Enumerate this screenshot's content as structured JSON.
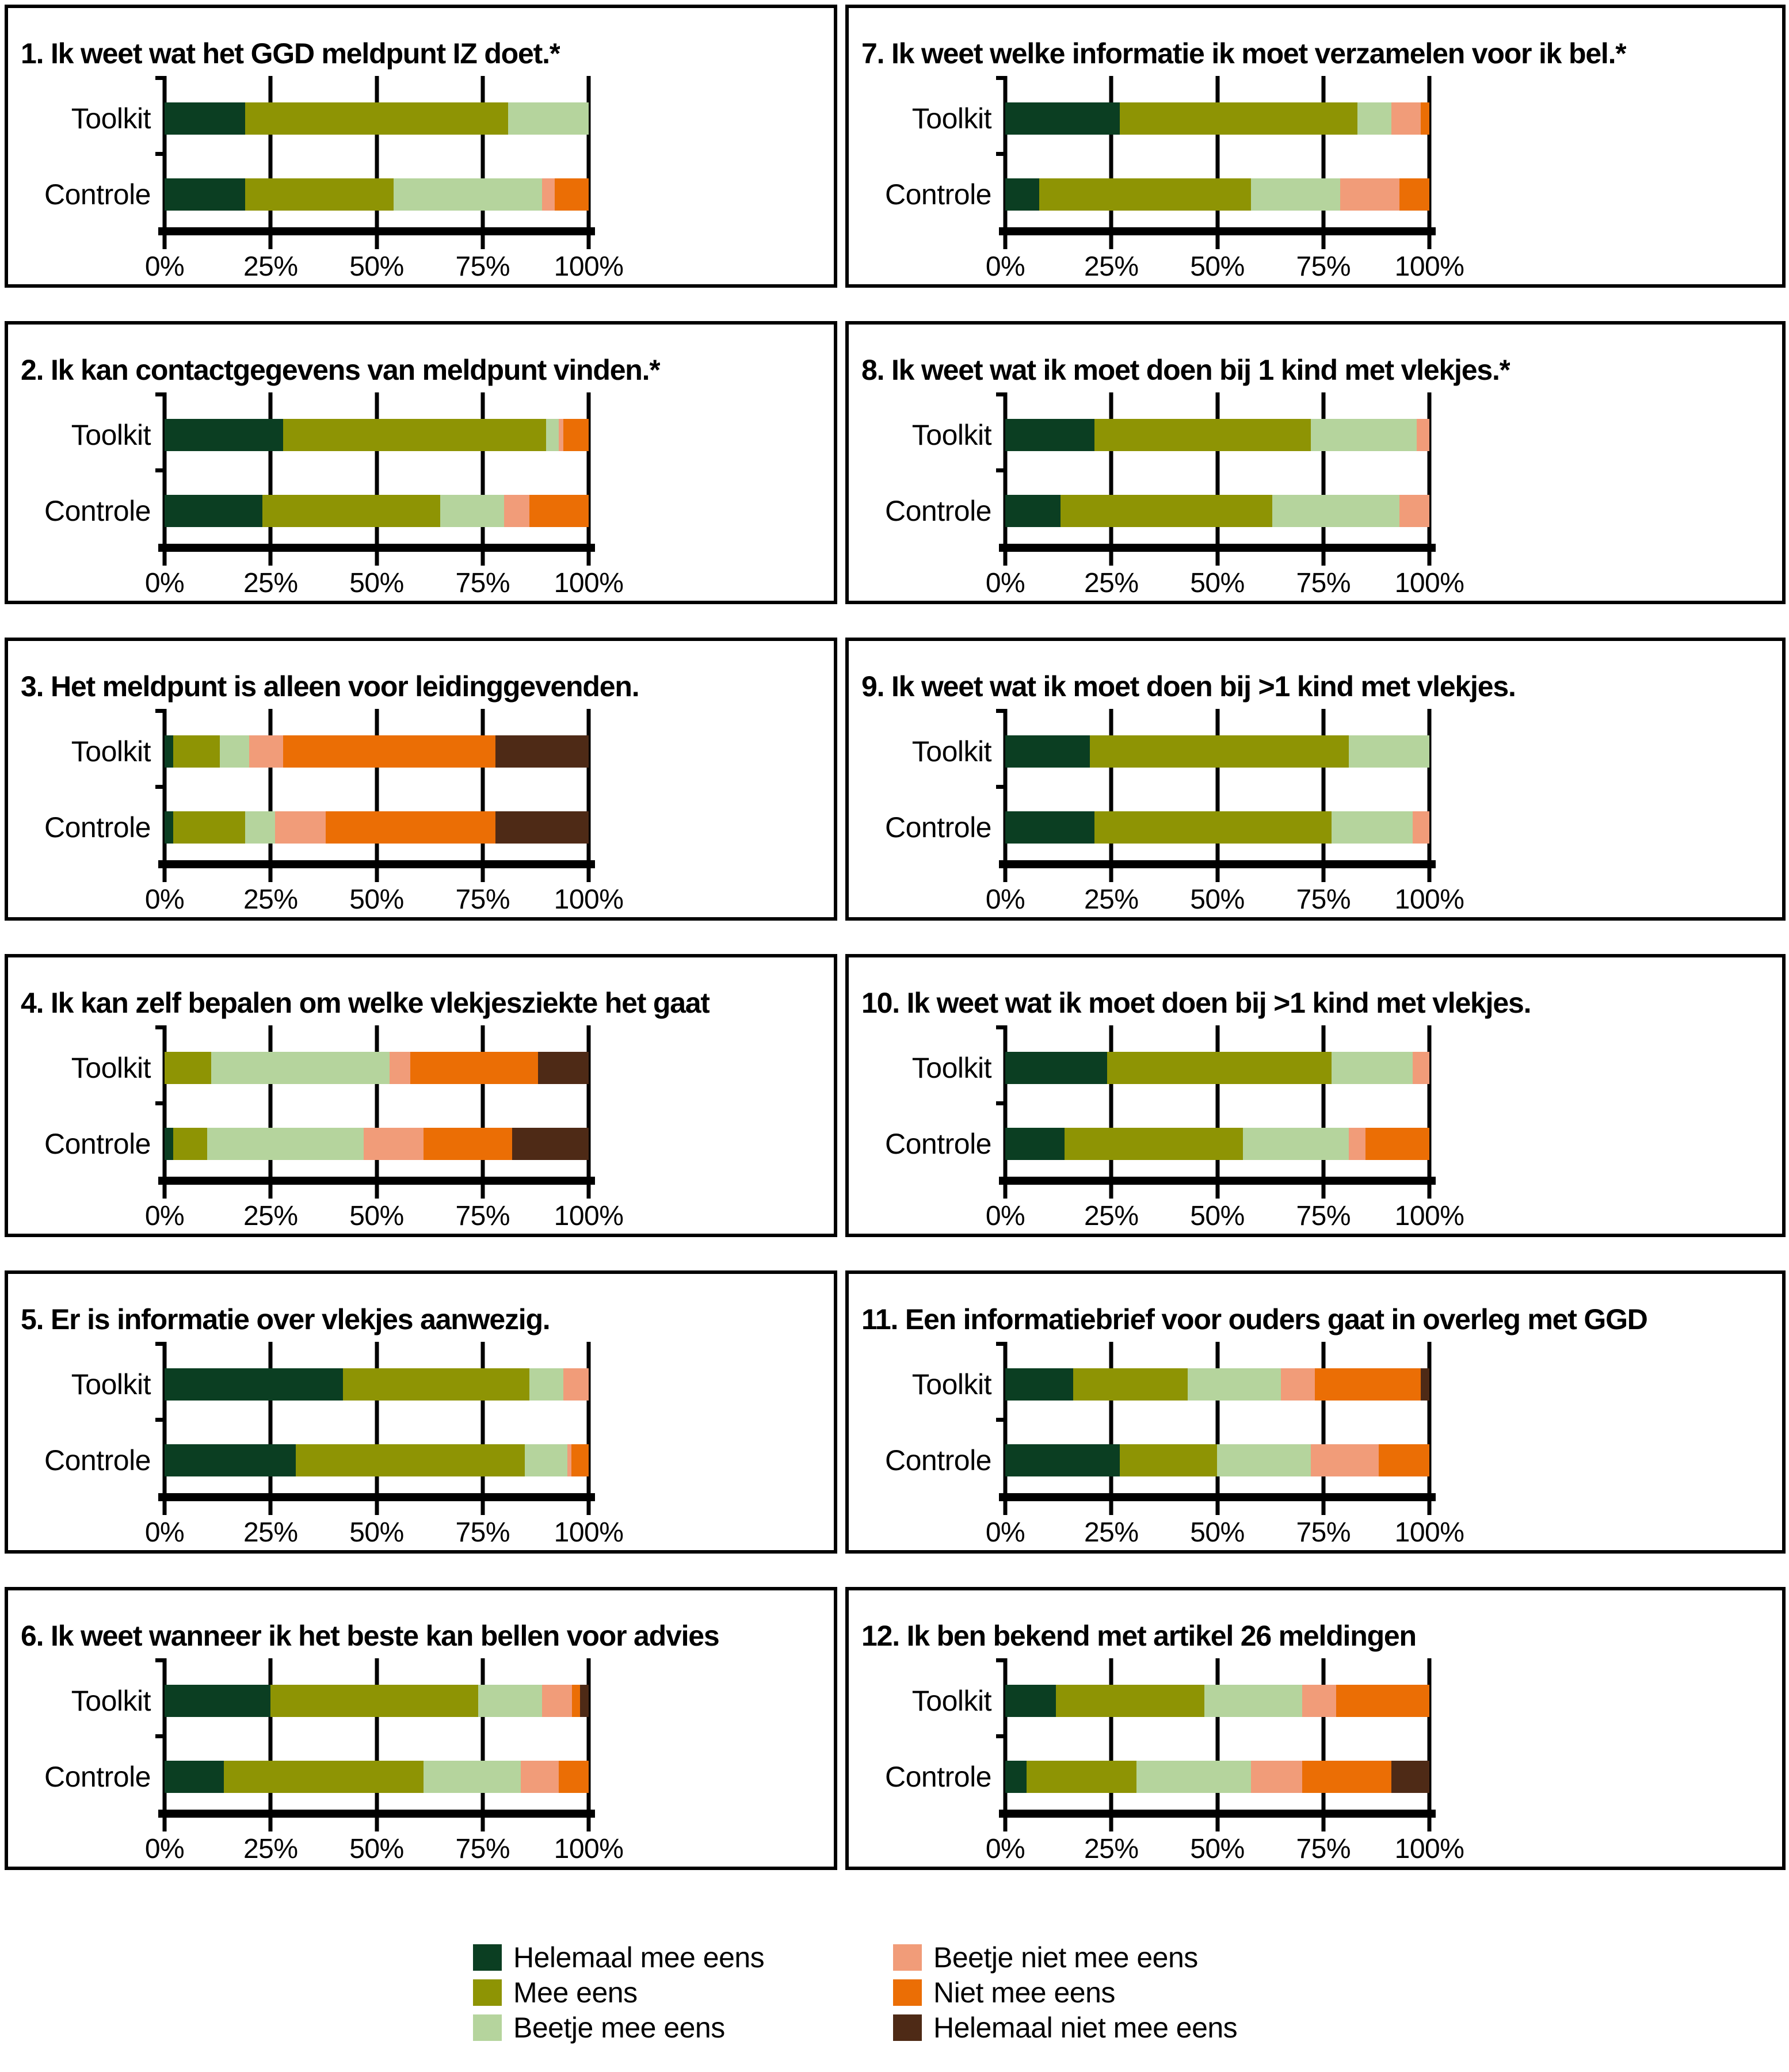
{
  "legend": {
    "items": [
      {
        "label": "Helemaal mee eens",
        "color": "#0b3e22"
      },
      {
        "label": "Mee eens",
        "color": "#8e9404"
      },
      {
        "label": "Beetje mee eens",
        "color": "#b5d49d"
      },
      {
        "label": "Beetje niet mee eens",
        "color": "#f19c79"
      },
      {
        "label": "Niet mee eens",
        "color": "#eb6e05"
      },
      {
        "label": "Helemaal niet mee eens",
        "color": "#4e2a16"
      }
    ]
  },
  "axis": {
    "ticks": [
      "0%",
      "25%",
      "50%",
      "75%",
      "100%"
    ]
  },
  "chart_data": [
    {
      "type": "bar",
      "stacked": true,
      "orientation": "horizontal",
      "title": "1. Ik weet wat het GGD meldpunt IZ doet.*",
      "categories": [
        "Toolkit",
        "Controle"
      ],
      "xlim": [
        0,
        100
      ],
      "grid": true,
      "series": [
        {
          "name": "Helemaal mee eens",
          "values": [
            19,
            19
          ]
        },
        {
          "name": "Mee eens",
          "values": [
            62,
            35
          ]
        },
        {
          "name": "Beetje mee eens",
          "values": [
            19,
            35
          ]
        },
        {
          "name": "Beetje niet mee eens",
          "values": [
            0,
            3
          ]
        },
        {
          "name": "Niet mee eens",
          "values": [
            0,
            8
          ]
        },
        {
          "name": "Helemaal niet mee eens",
          "values": [
            0,
            0
          ]
        }
      ]
    },
    {
      "type": "bar",
      "stacked": true,
      "orientation": "horizontal",
      "title": "2. Ik kan contactgegevens van meldpunt vinden.*",
      "categories": [
        "Toolkit",
        "Controle"
      ],
      "xlim": [
        0,
        100
      ],
      "grid": true,
      "series": [
        {
          "name": "Helemaal mee eens",
          "values": [
            28,
            23
          ]
        },
        {
          "name": "Mee eens",
          "values": [
            62,
            42
          ]
        },
        {
          "name": "Beetje mee eens",
          "values": [
            3,
            15
          ]
        },
        {
          "name": "Beetje niet mee eens",
          "values": [
            1,
            6
          ]
        },
        {
          "name": "Niet mee eens",
          "values": [
            6,
            14
          ]
        },
        {
          "name": "Helemaal niet mee eens",
          "values": [
            0,
            0
          ]
        }
      ]
    },
    {
      "type": "bar",
      "stacked": true,
      "orientation": "horizontal",
      "title": "3. Het meldpunt is alleen voor leidinggevenden.",
      "categories": [
        "Toolkit",
        "Controle"
      ],
      "xlim": [
        0,
        100
      ],
      "grid": true,
      "series": [
        {
          "name": "Helemaal mee eens",
          "values": [
            2,
            2
          ]
        },
        {
          "name": "Mee eens",
          "values": [
            11,
            17
          ]
        },
        {
          "name": "Beetje mee eens",
          "values": [
            7,
            7
          ]
        },
        {
          "name": "Beetje niet mee eens",
          "values": [
            8,
            12
          ]
        },
        {
          "name": "Niet mee eens",
          "values": [
            50,
            40
          ]
        },
        {
          "name": "Helemaal niet mee eens",
          "values": [
            22,
            22
          ]
        }
      ]
    },
    {
      "type": "bar",
      "stacked": true,
      "orientation": "horizontal",
      "title": "4. Ik kan zelf bepalen om welke vlekjesziekte het gaat",
      "categories": [
        "Toolkit",
        "Controle"
      ],
      "xlim": [
        0,
        100
      ],
      "grid": true,
      "series": [
        {
          "name": "Helemaal mee eens",
          "values": [
            0,
            2
          ]
        },
        {
          "name": "Mee eens",
          "values": [
            11,
            8
          ]
        },
        {
          "name": "Beetje mee eens",
          "values": [
            42,
            37
          ]
        },
        {
          "name": "Beetje niet mee eens",
          "values": [
            5,
            14
          ]
        },
        {
          "name": "Niet mee eens",
          "values": [
            30,
            21
          ]
        },
        {
          "name": "Helemaal niet mee eens",
          "values": [
            12,
            18
          ]
        }
      ]
    },
    {
      "type": "bar",
      "stacked": true,
      "orientation": "horizontal",
      "title": "5. Er is informatie over vlekjes aanwezig.",
      "categories": [
        "Toolkit",
        "Controle"
      ],
      "xlim": [
        0,
        100
      ],
      "grid": true,
      "series": [
        {
          "name": "Helemaal mee eens",
          "values": [
            42,
            31
          ]
        },
        {
          "name": "Mee eens",
          "values": [
            44,
            54
          ]
        },
        {
          "name": "Beetje mee eens",
          "values": [
            8,
            10
          ]
        },
        {
          "name": "Beetje niet mee eens",
          "values": [
            6,
            1
          ]
        },
        {
          "name": "Niet mee eens",
          "values": [
            0,
            4
          ]
        },
        {
          "name": "Helemaal niet mee eens",
          "values": [
            0,
            0
          ]
        }
      ]
    },
    {
      "type": "bar",
      "stacked": true,
      "orientation": "horizontal",
      "title": "6. Ik weet wanneer ik het beste kan bellen voor advies",
      "categories": [
        "Toolkit",
        "Controle"
      ],
      "xlim": [
        0,
        100
      ],
      "grid": true,
      "series": [
        {
          "name": "Helemaal mee eens",
          "values": [
            25,
            14
          ]
        },
        {
          "name": "Mee eens",
          "values": [
            49,
            47
          ]
        },
        {
          "name": "Beetje mee eens",
          "values": [
            15,
            23
          ]
        },
        {
          "name": "Beetje niet mee eens",
          "values": [
            7,
            9
          ]
        },
        {
          "name": "Niet mee eens",
          "values": [
            2,
            7
          ]
        },
        {
          "name": "Helemaal niet mee eens",
          "values": [
            2,
            0
          ]
        }
      ]
    },
    {
      "type": "bar",
      "stacked": true,
      "orientation": "horizontal",
      "title": "7. Ik weet welke informatie ik moet verzamelen voor ik bel.*",
      "categories": [
        "Toolkit",
        "Controle"
      ],
      "xlim": [
        0,
        100
      ],
      "grid": true,
      "series": [
        {
          "name": "Helemaal mee eens",
          "values": [
            27,
            8
          ]
        },
        {
          "name": "Mee eens",
          "values": [
            56,
            50
          ]
        },
        {
          "name": "Beetje mee eens",
          "values": [
            8,
            21
          ]
        },
        {
          "name": "Beetje niet mee eens",
          "values": [
            7,
            14
          ]
        },
        {
          "name": "Niet mee eens",
          "values": [
            2,
            7
          ]
        },
        {
          "name": "Helemaal niet mee eens",
          "values": [
            0,
            0
          ]
        }
      ]
    },
    {
      "type": "bar",
      "stacked": true,
      "orientation": "horizontal",
      "title": "8. Ik weet wat ik moet doen bij 1 kind met vlekjes.*",
      "categories": [
        "Toolkit",
        "Controle"
      ],
      "xlim": [
        0,
        100
      ],
      "grid": true,
      "series": [
        {
          "name": "Helemaal mee eens",
          "values": [
            21,
            13
          ]
        },
        {
          "name": "Mee eens",
          "values": [
            51,
            50
          ]
        },
        {
          "name": "Beetje mee eens",
          "values": [
            25,
            30
          ]
        },
        {
          "name": "Beetje niet mee eens",
          "values": [
            3,
            7
          ]
        },
        {
          "name": "Niet mee eens",
          "values": [
            0,
            0
          ]
        },
        {
          "name": "Helemaal niet mee eens",
          "values": [
            0,
            0
          ]
        }
      ]
    },
    {
      "type": "bar",
      "stacked": true,
      "orientation": "horizontal",
      "title": "9. Ik weet wat ik moet doen bij >1 kind met vlekjes.",
      "categories": [
        "Toolkit",
        "Controle"
      ],
      "xlim": [
        0,
        100
      ],
      "grid": true,
      "series": [
        {
          "name": "Helemaal mee eens",
          "values": [
            20,
            21
          ]
        },
        {
          "name": "Mee eens",
          "values": [
            61,
            56
          ]
        },
        {
          "name": "Beetje mee eens",
          "values": [
            19,
            19
          ]
        },
        {
          "name": "Beetje niet mee eens",
          "values": [
            0,
            4
          ]
        },
        {
          "name": "Niet mee eens",
          "values": [
            0,
            0
          ]
        },
        {
          "name": "Helemaal niet mee eens",
          "values": [
            0,
            0
          ]
        }
      ]
    },
    {
      "type": "bar",
      "stacked": true,
      "orientation": "horizontal",
      "title": "10. Ik weet wat ik moet doen bij >1 kind met vlekjes.",
      "categories": [
        "Toolkit",
        "Controle"
      ],
      "xlim": [
        0,
        100
      ],
      "grid": true,
      "series": [
        {
          "name": "Helemaal mee eens",
          "values": [
            24,
            14
          ]
        },
        {
          "name": "Mee eens",
          "values": [
            53,
            42
          ]
        },
        {
          "name": "Beetje mee eens",
          "values": [
            19,
            25
          ]
        },
        {
          "name": "Beetje niet mee eens",
          "values": [
            4,
            4
          ]
        },
        {
          "name": "Niet mee eens",
          "values": [
            0,
            15
          ]
        },
        {
          "name": "Helemaal niet mee eens",
          "values": [
            0,
            0
          ]
        }
      ]
    },
    {
      "type": "bar",
      "stacked": true,
      "orientation": "horizontal",
      "title": "11. Een informatiebrief voor ouders gaat in overleg met GGD",
      "categories": [
        "Toolkit",
        "Controle"
      ],
      "xlim": [
        0,
        100
      ],
      "grid": true,
      "series": [
        {
          "name": "Helemaal mee eens",
          "values": [
            16,
            27
          ]
        },
        {
          "name": "Mee eens",
          "values": [
            27,
            23
          ]
        },
        {
          "name": "Beetje mee eens",
          "values": [
            22,
            22
          ]
        },
        {
          "name": "Beetje niet mee eens",
          "values": [
            8,
            16
          ]
        },
        {
          "name": "Niet mee eens",
          "values": [
            25,
            12
          ]
        },
        {
          "name": "Helemaal niet mee eens",
          "values": [
            2,
            0
          ]
        }
      ]
    },
    {
      "type": "bar",
      "stacked": true,
      "orientation": "horizontal",
      "title": "12. Ik ben bekend met artikel 26 meldingen",
      "categories": [
        "Toolkit",
        "Controle"
      ],
      "xlim": [
        0,
        100
      ],
      "grid": true,
      "series": [
        {
          "name": "Helemaal mee eens",
          "values": [
            12,
            5
          ]
        },
        {
          "name": "Mee eens",
          "values": [
            35,
            26
          ]
        },
        {
          "name": "Beetje mee eens",
          "values": [
            23,
            27
          ]
        },
        {
          "name": "Beetje niet mee eens",
          "values": [
            8,
            12
          ]
        },
        {
          "name": "Niet mee eens",
          "values": [
            22,
            21
          ]
        },
        {
          "name": "Helemaal niet mee eens",
          "values": [
            0,
            9
          ]
        }
      ]
    }
  ]
}
